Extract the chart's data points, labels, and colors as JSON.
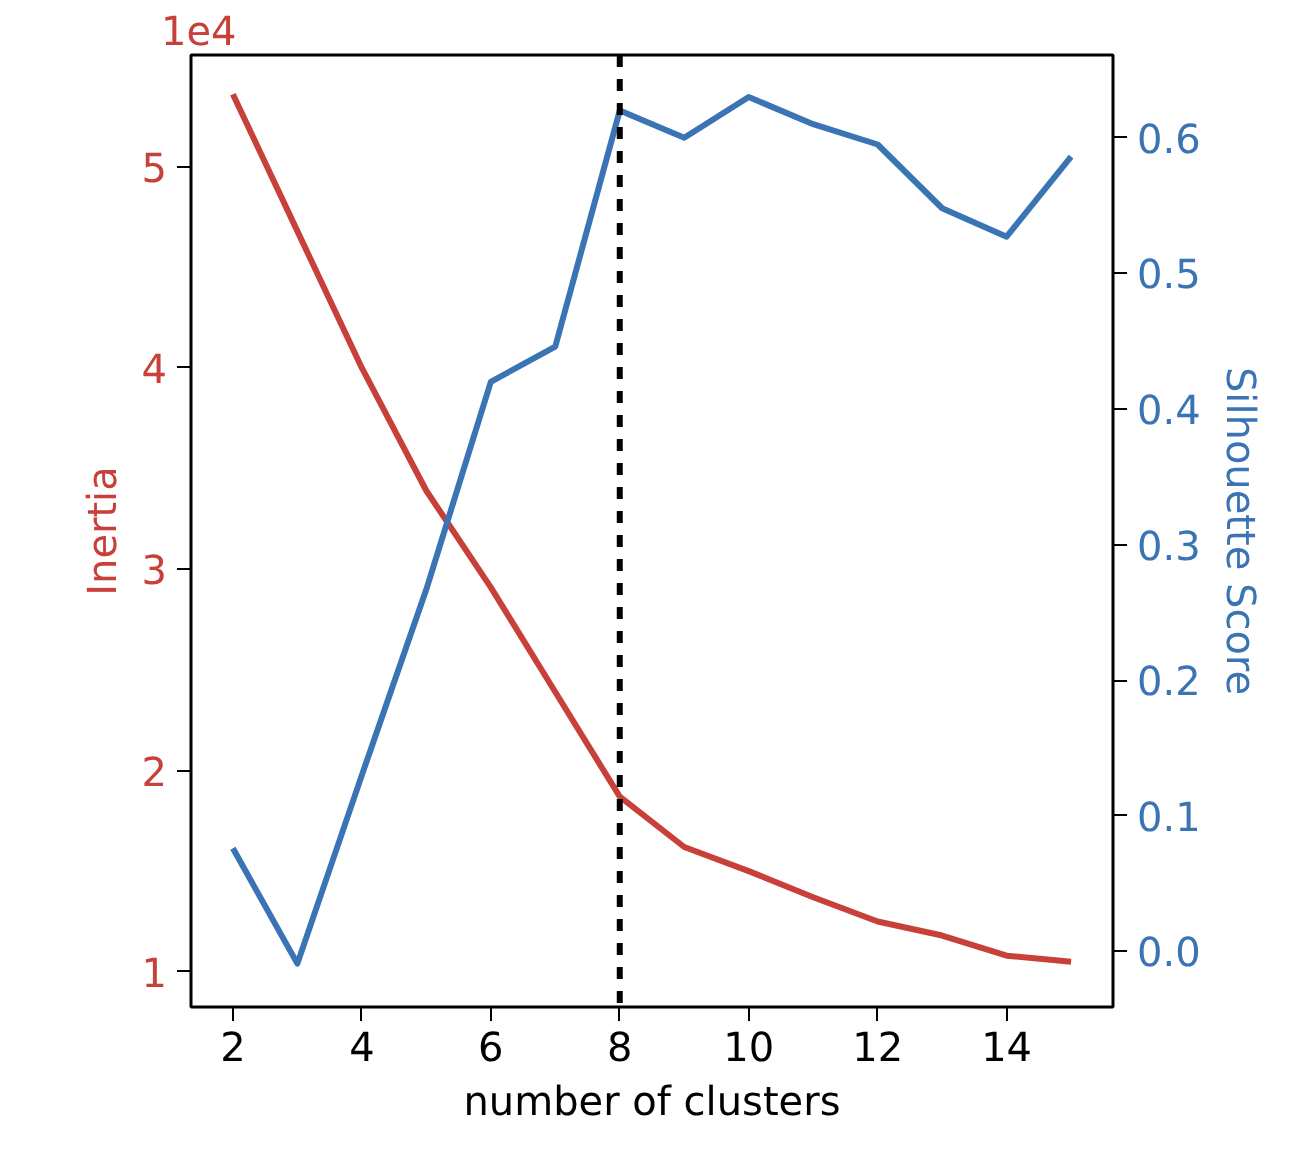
{
  "chart_data": {
    "type": "line",
    "x": [
      2,
      3,
      4,
      5,
      6,
      7,
      8,
      9,
      10,
      11,
      12,
      13,
      14,
      15
    ],
    "xlabel": "number of clusters",
    "ylabel": "Inertia",
    "y2label": "Silhouette Score",
    "xlim": [
      1.35,
      15.65
    ],
    "xticks": [
      2,
      4,
      6,
      8,
      10,
      12,
      14
    ],
    "ylim": [
      0.825,
      5.555
    ],
    "yticks": [
      1,
      2,
      3,
      4,
      5
    ],
    "y2lim": [
      -0.041,
      0.661
    ],
    "y2ticks": [
      {
        "value": 0.0,
        "label": "0.0"
      },
      {
        "value": 0.1,
        "label": "0.1"
      },
      {
        "value": 0.2,
        "label": "0.2"
      },
      {
        "value": 0.3,
        "label": "0.3"
      },
      {
        "value": 0.4,
        "label": "0.4"
      },
      {
        "value": 0.5,
        "label": "0.5"
      },
      {
        "value": 0.6,
        "label": "0.6"
      }
    ],
    "annotations": [
      "1e4"
    ],
    "series": [
      {
        "color": "#c8403a",
        "values": [
          5.36,
          4.68,
          4.0,
          3.39,
          2.91,
          2.39,
          1.87,
          1.62,
          1.5,
          1.37,
          1.25,
          1.18,
          1.08,
          1.05
        ]
      },
      {
        "color": "#3a74b4",
        "axis": "y2",
        "values": [
          0.076,
          -0.009,
          0.13,
          0.267,
          0.42,
          0.446,
          0.62,
          0.6,
          0.63,
          0.61,
          0.595,
          0.548,
          0.527,
          0.586
        ]
      }
    ],
    "ref_lines": [
      {
        "axis": "x",
        "value": 8,
        "color": "#000000",
        "line_style": "dashed"
      }
    ],
    "grid": false,
    "marker": "none",
    "line_style": "solid"
  }
}
